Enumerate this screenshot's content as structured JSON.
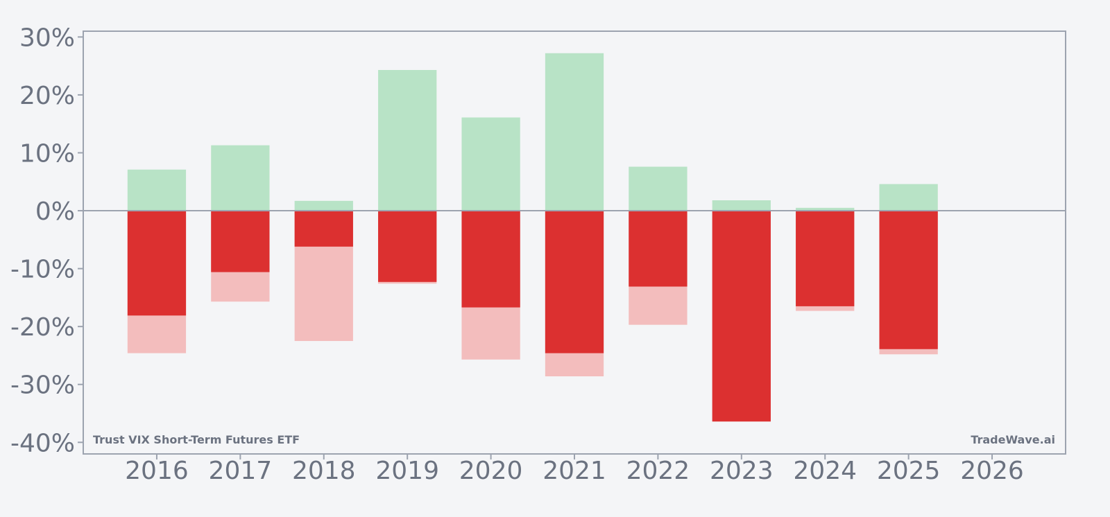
{
  "chart_data": {
    "type": "bar",
    "categories": [
      "2016",
      "2017",
      "2018",
      "2019",
      "2020",
      "2021",
      "2022",
      "2023",
      "2024",
      "2025",
      "2026"
    ],
    "series": [
      {
        "values": [
          7.1,
          11.3,
          1.7,
          24.3,
          16.1,
          27.2,
          7.6,
          1.8,
          0.5,
          4.6,
          null
        ]
      },
      {
        "values": [
          -18.1,
          -10.6,
          -6.2,
          -12.3,
          -16.7,
          -24.6,
          -13.1,
          -36.4,
          -16.5,
          -23.9,
          null
        ]
      },
      {
        "values": [
          -24.6,
          -15.7,
          -22.5,
          -12.6,
          -25.7,
          -28.6,
          -19.7,
          -36.4,
          -17.3,
          -24.8,
          null
        ]
      }
    ],
    "ylim": [
      -42,
      31
    ],
    "yticks": [
      30,
      20,
      10,
      0,
      -10,
      -20,
      -30,
      -40
    ],
    "ytick_labels": [
      "30%",
      "20%",
      "10%",
      "0%",
      "-10%",
      "-20%",
      "-30%",
      "-40%"
    ],
    "grid": false,
    "colors": {
      "positive": "#b8e3c6",
      "negative_dark": "#dc3030",
      "negative_light": "#f3bdbd",
      "axis": "#9ca3af",
      "text": "#6b7280"
    },
    "annotations": {
      "left": "Trust VIX Short-Term Futures ETF",
      "right": "TradeWave.ai"
    }
  }
}
